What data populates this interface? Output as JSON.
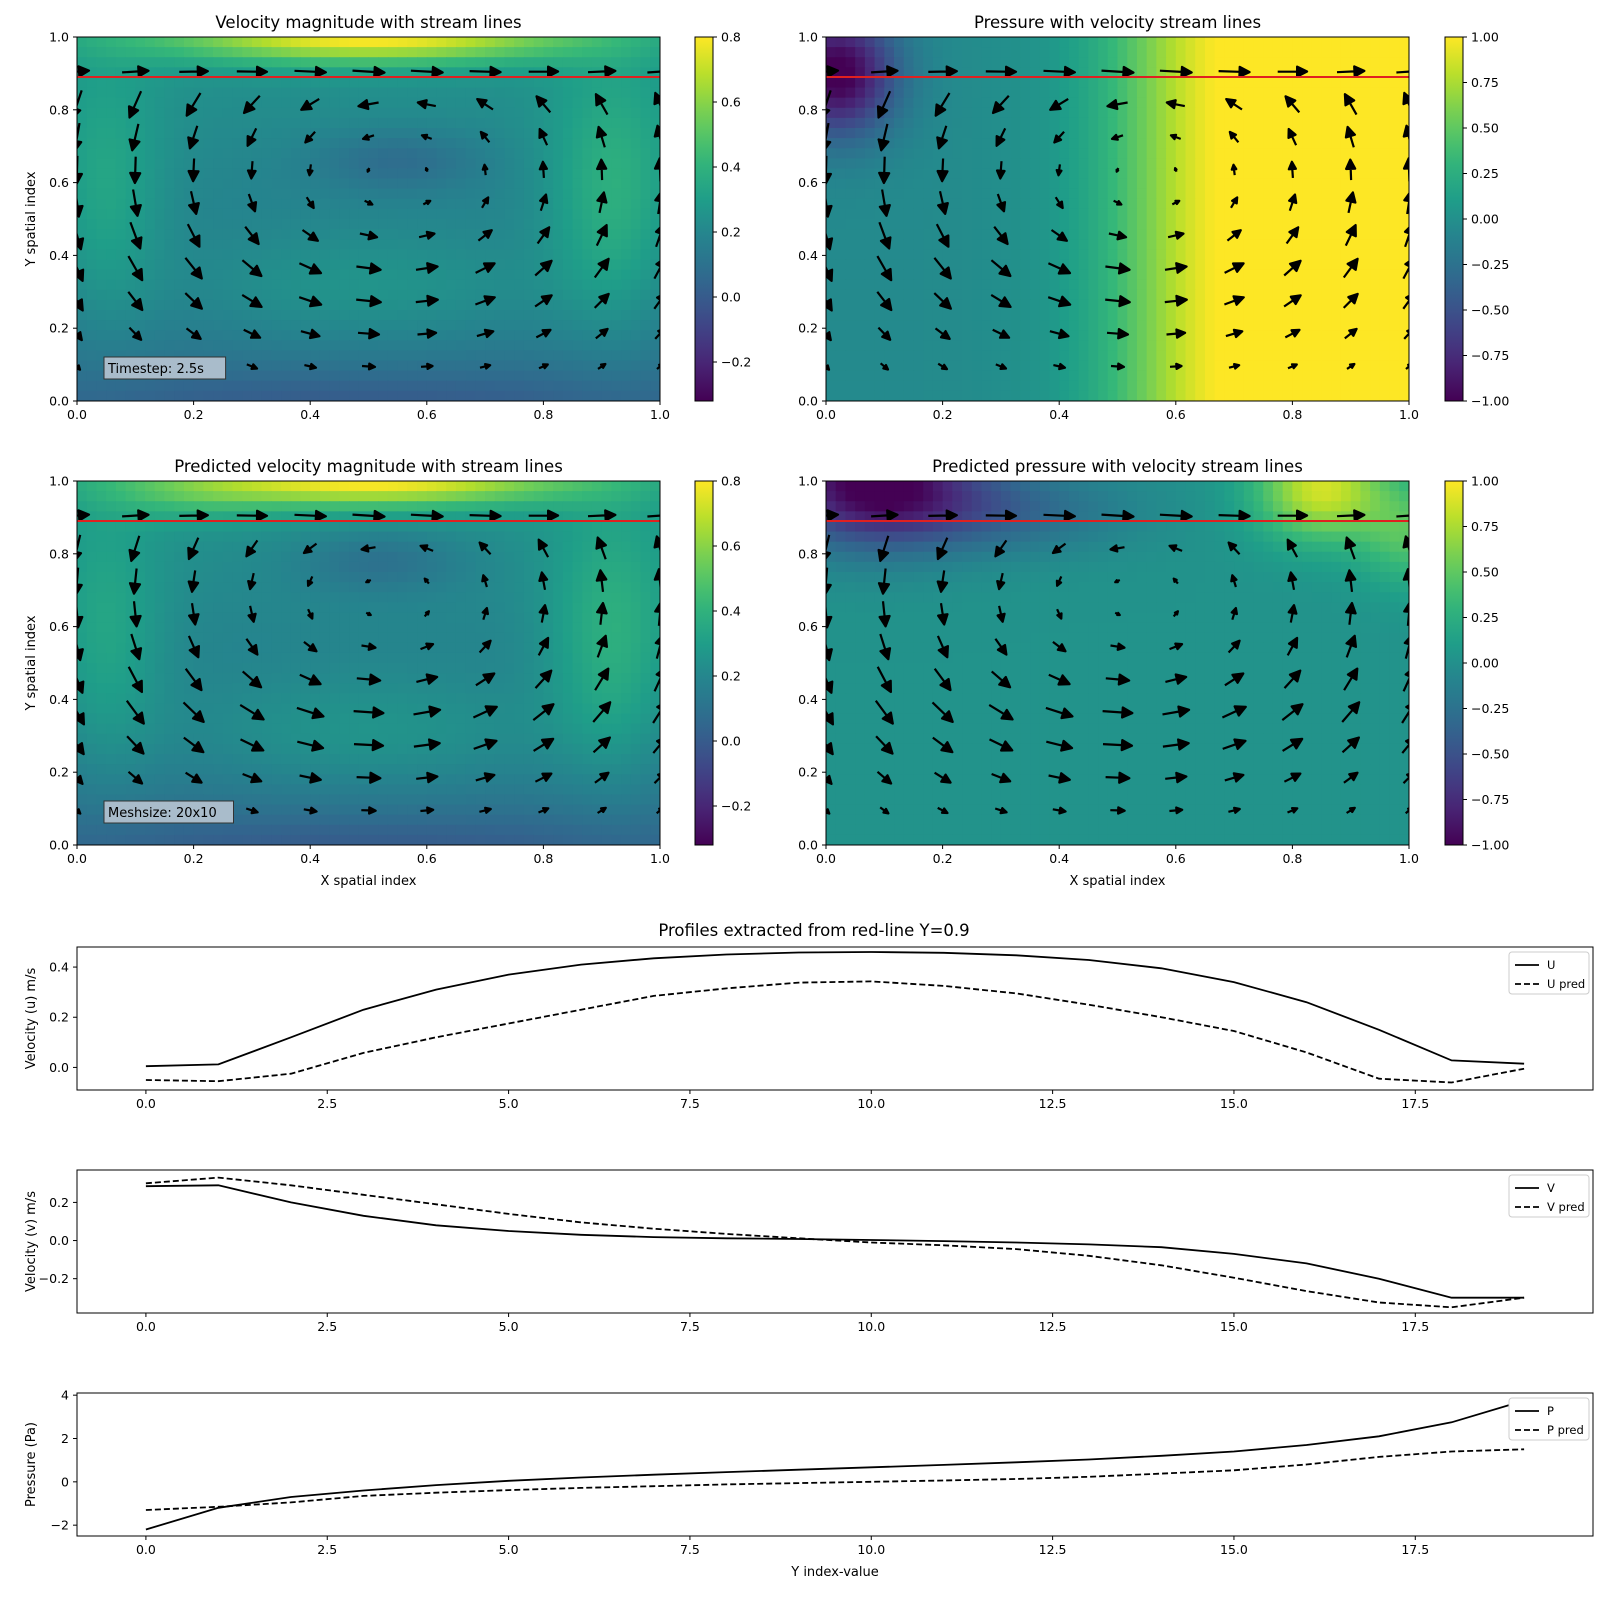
{
  "heatmaps": [
    {
      "id": "hm1",
      "title": "Velocity magnitude with stream lines",
      "ylabel": "Y spatial index",
      "xlabel": "",
      "xticks": [
        "0.0",
        "0.2",
        "0.4",
        "0.6",
        "0.8",
        "1.0"
      ],
      "yticks": [
        "0.0",
        "0.2",
        "0.4",
        "0.6",
        "0.8",
        "1.0"
      ],
      "cbar_ticks": [
        "−0.2",
        "0.0",
        "0.2",
        "0.4",
        "0.6",
        "0.8"
      ],
      "cbar_vals": [
        -0.2,
        0.0,
        0.2,
        0.4,
        0.6,
        0.8
      ],
      "cbar_range": [
        -0.32,
        0.8
      ],
      "annotation": "Timestep: 2.5s"
    },
    {
      "id": "hm2",
      "title": "Pressure with velocity stream lines",
      "ylabel": "",
      "xlabel": "",
      "xticks": [
        "0.0",
        "0.2",
        "0.4",
        "0.6",
        "0.8",
        "1.0"
      ],
      "yticks": [
        "0.0",
        "0.2",
        "0.4",
        "0.6",
        "0.8",
        "1.0"
      ],
      "cbar_ticks": [
        "−1.00",
        "−0.75",
        "−0.50",
        "−0.25",
        "0.00",
        "0.25",
        "0.50",
        "0.75",
        "1.00"
      ],
      "cbar_vals": [
        -1.0,
        -0.75,
        -0.5,
        -0.25,
        0.0,
        0.25,
        0.5,
        0.75,
        1.0
      ],
      "cbar_range": [
        -1.0,
        1.0
      ],
      "annotation": ""
    },
    {
      "id": "hm3",
      "title": "Predicted velocity magnitude with stream lines",
      "ylabel": "Y spatial index",
      "xlabel": "X spatial index",
      "xticks": [
        "0.0",
        "0.2",
        "0.4",
        "0.6",
        "0.8",
        "1.0"
      ],
      "yticks": [
        "0.0",
        "0.2",
        "0.4",
        "0.6",
        "0.8",
        "1.0"
      ],
      "cbar_ticks": [
        "−0.2",
        "0.0",
        "0.2",
        "0.4",
        "0.6",
        "0.8"
      ],
      "cbar_vals": [
        -0.2,
        0.0,
        0.2,
        0.4,
        0.6,
        0.8
      ],
      "cbar_range": [
        -0.32,
        0.8
      ],
      "annotation": "Meshsize: 20x10"
    },
    {
      "id": "hm4",
      "title": "Predicted pressure with velocity stream lines",
      "ylabel": "",
      "xlabel": "X spatial index",
      "xticks": [
        "0.0",
        "0.2",
        "0.4",
        "0.6",
        "0.8",
        "1.0"
      ],
      "yticks": [
        "0.0",
        "0.2",
        "0.4",
        "0.6",
        "0.8",
        "1.0"
      ],
      "cbar_ticks": [
        "−1.00",
        "−0.75",
        "−0.50",
        "−0.25",
        "0.00",
        "0.25",
        "0.50",
        "0.75",
        "1.00"
      ],
      "cbar_vals": [
        -1.0,
        -0.75,
        -0.5,
        -0.25,
        0.0,
        0.25,
        0.5,
        0.75,
        1.0
      ],
      "cbar_range": [
        -1.0,
        1.0
      ],
      "annotation": ""
    }
  ],
  "chart_data": [
    {
      "type": "heatmap",
      "title": "Velocity magnitude with stream lines",
      "ylabel": "Y spatial index",
      "xlim": [
        0,
        1
      ],
      "ylim": [
        0,
        1
      ],
      "colormap": "viridis",
      "clim": [
        -0.32,
        0.8
      ],
      "red_line_y": 0.89,
      "red_line_color": "#e02020"
    },
    {
      "type": "heatmap",
      "title": "Pressure with velocity stream lines",
      "xlim": [
        0,
        1
      ],
      "ylim": [
        0,
        1
      ],
      "colormap": "viridis",
      "clim": [
        -1.0,
        1.0
      ],
      "red_line_y": 0.89,
      "red_line_color": "#e02020"
    },
    {
      "type": "heatmap",
      "title": "Predicted velocity magnitude with stream lines",
      "xlabel": "X spatial index",
      "ylabel": "Y spatial index",
      "xlim": [
        0,
        1
      ],
      "ylim": [
        0,
        1
      ],
      "colormap": "viridis",
      "clim": [
        -0.32,
        0.8
      ],
      "red_line_y": 0.89,
      "red_line_color": "#e02020"
    },
    {
      "type": "heatmap",
      "title": "Predicted pressure with velocity stream lines",
      "xlabel": "X spatial index",
      "xlim": [
        0,
        1
      ],
      "ylim": [
        0,
        1
      ],
      "colormap": "viridis",
      "clim": [
        -1.0,
        1.0
      ],
      "red_line_y": 0.89,
      "red_line_color": "#e02020"
    },
    {
      "type": "line",
      "title": "Profiles extracted from red-line Y=0.9",
      "ylabel": "Velocity (u) m/s",
      "x": [
        0,
        1,
        2,
        3,
        4,
        5,
        6,
        7,
        8,
        9,
        10,
        11,
        12,
        13,
        14,
        15,
        16,
        17,
        18,
        19
      ],
      "xlim": [
        -0.95,
        19.95
      ],
      "ylim": [
        -0.09,
        0.48
      ],
      "xticks": [
        0,
        2.5,
        5,
        7.5,
        10,
        12.5,
        15,
        17.5
      ],
      "xtick_labels": [
        "0.0",
        "2.5",
        "5.0",
        "7.5",
        "10.0",
        "12.5",
        "15.0",
        "17.5"
      ],
      "yticks": [
        0.0,
        0.2,
        0.4
      ],
      "ytick_labels": [
        "0.0",
        "0.2",
        "0.4"
      ],
      "legend_position": "top-right",
      "series": [
        {
          "name": "U",
          "style": "solid",
          "values": [
            0.005,
            0.012,
            0.12,
            0.23,
            0.31,
            0.37,
            0.41,
            0.435,
            0.45,
            0.458,
            0.46,
            0.457,
            0.447,
            0.428,
            0.395,
            0.34,
            0.26,
            0.15,
            0.028,
            0.015
          ]
        },
        {
          "name": "U pred",
          "style": "dashed",
          "values": [
            -0.05,
            -0.055,
            -0.025,
            0.058,
            0.12,
            0.175,
            0.23,
            0.285,
            0.315,
            0.338,
            0.343,
            0.325,
            0.295,
            0.25,
            0.2,
            0.145,
            0.06,
            -0.045,
            -0.06,
            -0.005
          ]
        }
      ]
    },
    {
      "type": "line",
      "ylabel": "Velocity (v) m/s",
      "x": [
        0,
        1,
        2,
        3,
        4,
        5,
        6,
        7,
        8,
        9,
        10,
        11,
        12,
        13,
        14,
        15,
        16,
        17,
        18,
        19
      ],
      "xlim": [
        -0.95,
        19.95
      ],
      "ylim": [
        -0.38,
        0.37
      ],
      "xticks": [
        0,
        2.5,
        5,
        7.5,
        10,
        12.5,
        15,
        17.5
      ],
      "xtick_labels": [
        "0.0",
        "2.5",
        "5.0",
        "7.5",
        "10.0",
        "12.5",
        "15.0",
        "17.5"
      ],
      "yticks": [
        -0.2,
        0.0,
        0.2
      ],
      "ytick_labels": [
        "−0.2",
        "0.0",
        "0.2"
      ],
      "legend_position": "top-right",
      "series": [
        {
          "name": "V",
          "style": "solid",
          "values": [
            0.285,
            0.29,
            0.2,
            0.13,
            0.08,
            0.05,
            0.03,
            0.018,
            0.012,
            0.008,
            0.003,
            -0.003,
            -0.01,
            -0.02,
            -0.035,
            -0.07,
            -0.12,
            -0.2,
            -0.3,
            -0.3
          ]
        },
        {
          "name": "V pred",
          "style": "dashed",
          "values": [
            0.3,
            0.33,
            0.29,
            0.24,
            0.19,
            0.14,
            0.095,
            0.062,
            0.035,
            0.012,
            -0.01,
            -0.025,
            -0.045,
            -0.08,
            -0.13,
            -0.195,
            -0.265,
            -0.325,
            -0.35,
            -0.3
          ]
        }
      ]
    },
    {
      "type": "line",
      "ylabel": "Pressure (Pa)",
      "xlabel": "Y index-value",
      "x": [
        0,
        1,
        2,
        3,
        4,
        5,
        6,
        7,
        8,
        9,
        10,
        11,
        12,
        13,
        14,
        15,
        16,
        17,
        18,
        19
      ],
      "xlim": [
        -0.95,
        19.95
      ],
      "ylim": [
        -2.5,
        4.1
      ],
      "xticks": [
        0,
        2.5,
        5,
        7.5,
        10,
        12.5,
        15,
        17.5
      ],
      "xtick_labels": [
        "0.0",
        "2.5",
        "5.0",
        "7.5",
        "10.0",
        "12.5",
        "15.0",
        "17.5"
      ],
      "yticks": [
        -2,
        0,
        2,
        4
      ],
      "ytick_labels": [
        "−2",
        "0",
        "2",
        "4"
      ],
      "legend_position": "top-right",
      "series": [
        {
          "name": "P",
          "style": "solid",
          "values": [
            -2.2,
            -1.2,
            -0.7,
            -0.4,
            -0.15,
            0.05,
            0.2,
            0.33,
            0.45,
            0.56,
            0.67,
            0.78,
            0.9,
            1.03,
            1.2,
            1.4,
            1.7,
            2.1,
            2.75,
            3.75
          ]
        },
        {
          "name": "P pred",
          "style": "dashed",
          "values": [
            -1.3,
            -1.15,
            -0.95,
            -0.65,
            -0.5,
            -0.38,
            -0.28,
            -0.2,
            -0.12,
            -0.06,
            0.0,
            0.06,
            0.13,
            0.23,
            0.38,
            0.53,
            0.8,
            1.15,
            1.4,
            1.5
          ]
        }
      ]
    }
  ]
}
